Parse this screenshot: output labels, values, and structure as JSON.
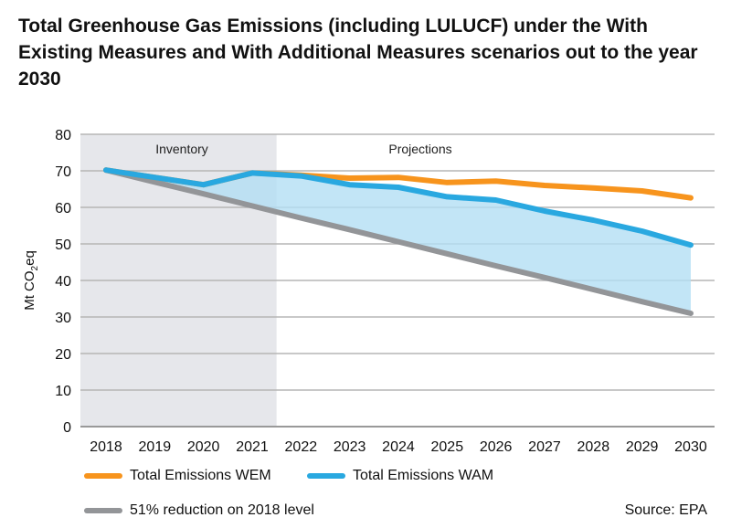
{
  "chart_data": {
    "type": "line",
    "title": "Total Greenhouse Gas Emissions (including LULUCF) under the With Existing Measures and With Additional Measures scenarios out to the year 2030",
    "ylabel": "Mt CO2eq",
    "ylabel_main": "Mt CO",
    "ylabel_sub": "2",
    "ylabel_tail": "eq",
    "ylim": [
      0,
      80
    ],
    "yticks": [
      0,
      10,
      20,
      30,
      40,
      50,
      60,
      70,
      80
    ],
    "grid": true,
    "categories": [
      "2018",
      "2019",
      "2020",
      "2021",
      "2022",
      "2023",
      "2024",
      "2025",
      "2026",
      "2027",
      "2028",
      "2029",
      "2030"
    ],
    "regions": [
      {
        "label": "Inventory",
        "from": "2018",
        "to": "2021"
      },
      {
        "label": "Projections",
        "from": "2022",
        "to": "2030"
      }
    ],
    "series": [
      {
        "name": "Total Emissions WEM",
        "color": "#f7941d",
        "values": [
          70.2,
          68.2,
          66.2,
          69.4,
          68.8,
          68.0,
          68.2,
          66.8,
          67.2,
          66.0,
          65.3,
          64.5,
          62.6
        ]
      },
      {
        "name": "Total Emissions WAM",
        "color": "#29a8e0",
        "values": [
          70.2,
          68.2,
          66.2,
          69.4,
          68.6,
          66.2,
          65.5,
          62.9,
          62.0,
          59.0,
          56.5,
          53.5,
          49.7
        ]
      },
      {
        "name": "51% reduction on 2018 level",
        "color": "#939598",
        "values": [
          70.2,
          66.9,
          63.7,
          60.4,
          57.1,
          53.9,
          50.6,
          47.3,
          44.0,
          40.8,
          37.5,
          34.2,
          31.0
        ]
      }
    ],
    "fill_color": "#b3dff4",
    "inventory_color": "#e6e7eb",
    "legend_placement": "bottom",
    "source": "Source: EPA"
  }
}
